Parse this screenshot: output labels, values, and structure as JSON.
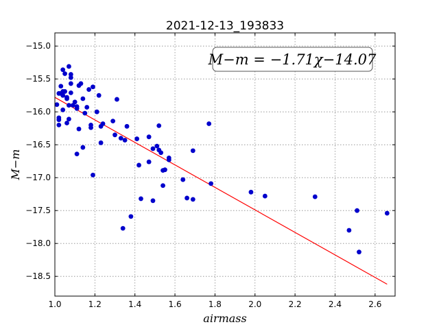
{
  "chart_data": {
    "type": "scatter",
    "title": "2021-12-13_193833",
    "xlabel": "airmass",
    "ylabel": "M−m",
    "xlim": [
      1.0,
      2.7
    ],
    "ylim": [
      -18.8,
      -14.8
    ],
    "x_ticks": [
      1.0,
      1.2,
      1.4,
      1.6,
      1.8,
      2.0,
      2.2,
      2.4,
      2.6
    ],
    "x_tick_labels": [
      "1.0",
      "1.2",
      "1.4",
      "1.6",
      "1.8",
      "2.0",
      "2.2",
      "2.4",
      "2.6"
    ],
    "y_ticks": [
      -15.0,
      -15.5,
      -16.0,
      -16.5,
      -17.0,
      -17.5,
      -18.0,
      -18.5
    ],
    "y_tick_labels": [
      "−15.0",
      "−15.5",
      "−16.0",
      "−16.5",
      "−17.0",
      "−17.5",
      "−18.0",
      "−18.5"
    ],
    "grid": true,
    "annotation": "M−m = −1.71χ−14.07",
    "annotation_position": "top-right",
    "fit_line": {
      "slope": -1.71,
      "intercept": -14.07,
      "x_range": [
        1.0,
        2.66
      ],
      "color": "#ff0000"
    },
    "marker_color": "#0000cc",
    "points": [
      {
        "x": 1.01,
        "y": -15.89
      },
      {
        "x": 1.02,
        "y": -15.72
      },
      {
        "x": 1.02,
        "y": -16.09
      },
      {
        "x": 1.02,
        "y": -16.12
      },
      {
        "x": 1.02,
        "y": -16.2
      },
      {
        "x": 1.03,
        "y": -15.72
      },
      {
        "x": 1.03,
        "y": -15.61
      },
      {
        "x": 1.04,
        "y": -15.69
      },
      {
        "x": 1.04,
        "y": -15.75
      },
      {
        "x": 1.04,
        "y": -15.97
      },
      {
        "x": 1.04,
        "y": -15.36
      },
      {
        "x": 1.05,
        "y": -15.69
      },
      {
        "x": 1.05,
        "y": -15.42
      },
      {
        "x": 1.06,
        "y": -15.78
      },
      {
        "x": 1.06,
        "y": -16.17
      },
      {
        "x": 1.06,
        "y": -15.8
      },
      {
        "x": 1.07,
        "y": -15.31
      },
      {
        "x": 1.07,
        "y": -15.9
      },
      {
        "x": 1.07,
        "y": -16.11
      },
      {
        "x": 1.08,
        "y": -15.71
      },
      {
        "x": 1.08,
        "y": -15.43
      },
      {
        "x": 1.08,
        "y": -15.48
      },
      {
        "x": 1.08,
        "y": -15.57
      },
      {
        "x": 1.09,
        "y": -15.9
      },
      {
        "x": 1.1,
        "y": -15.85
      },
      {
        "x": 1.11,
        "y": -15.95
      },
      {
        "x": 1.11,
        "y": -15.92
      },
      {
        "x": 1.11,
        "y": -16.64
      },
      {
        "x": 1.12,
        "y": -15.6
      },
      {
        "x": 1.12,
        "y": -16.26
      },
      {
        "x": 1.13,
        "y": -15.57
      },
      {
        "x": 1.14,
        "y": -15.8
      },
      {
        "x": 1.14,
        "y": -16.54
      },
      {
        "x": 1.15,
        "y": -16.02
      },
      {
        "x": 1.16,
        "y": -15.93
      },
      {
        "x": 1.17,
        "y": -15.66
      },
      {
        "x": 1.18,
        "y": -16.2
      },
      {
        "x": 1.18,
        "y": -16.24
      },
      {
        "x": 1.19,
        "y": -15.62
      },
      {
        "x": 1.19,
        "y": -16.96
      },
      {
        "x": 1.21,
        "y": -16.0
      },
      {
        "x": 1.22,
        "y": -15.75
      },
      {
        "x": 1.23,
        "y": -16.22
      },
      {
        "x": 1.23,
        "y": -16.47
      },
      {
        "x": 1.24,
        "y": -16.18
      },
      {
        "x": 1.29,
        "y": -16.14
      },
      {
        "x": 1.3,
        "y": -16.35
      },
      {
        "x": 1.31,
        "y": -15.81
      },
      {
        "x": 1.33,
        "y": -16.4
      },
      {
        "x": 1.34,
        "y": -17.77
      },
      {
        "x": 1.35,
        "y": -16.43
      },
      {
        "x": 1.36,
        "y": -16.22
      },
      {
        "x": 1.38,
        "y": -17.59
      },
      {
        "x": 1.41,
        "y": -16.41
      },
      {
        "x": 1.42,
        "y": -16.81
      },
      {
        "x": 1.43,
        "y": -17.32
      },
      {
        "x": 1.47,
        "y": -16.38
      },
      {
        "x": 1.47,
        "y": -16.76
      },
      {
        "x": 1.49,
        "y": -16.56
      },
      {
        "x": 1.49,
        "y": -17.35
      },
      {
        "x": 1.51,
        "y": -16.52
      },
      {
        "x": 1.52,
        "y": -16.21
      },
      {
        "x": 1.52,
        "y": -16.58
      },
      {
        "x": 1.53,
        "y": -16.62
      },
      {
        "x": 1.54,
        "y": -16.89
      },
      {
        "x": 1.54,
        "y": -17.12
      },
      {
        "x": 1.55,
        "y": -16.88
      },
      {
        "x": 1.57,
        "y": -16.7
      },
      {
        "x": 1.57,
        "y": -16.73
      },
      {
        "x": 1.64,
        "y": -17.03
      },
      {
        "x": 1.66,
        "y": -17.31
      },
      {
        "x": 1.69,
        "y": -16.59
      },
      {
        "x": 1.69,
        "y": -17.33
      },
      {
        "x": 1.77,
        "y": -16.18
      },
      {
        "x": 1.78,
        "y": -17.09
      },
      {
        "x": 1.98,
        "y": -17.22
      },
      {
        "x": 2.05,
        "y": -17.28
      },
      {
        "x": 2.3,
        "y": -17.29
      },
      {
        "x": 2.47,
        "y": -17.8
      },
      {
        "x": 2.51,
        "y": -17.5
      },
      {
        "x": 2.52,
        "y": -18.13
      },
      {
        "x": 2.66,
        "y": -17.54
      }
    ]
  }
}
